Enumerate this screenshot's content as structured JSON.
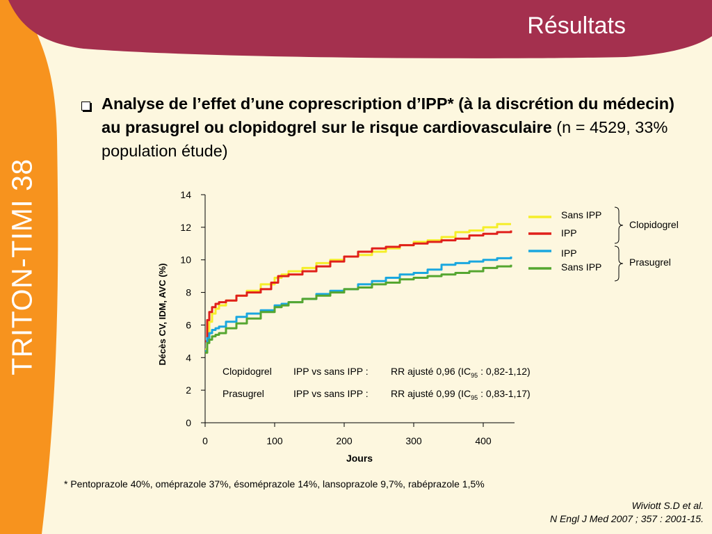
{
  "sidebar": {
    "title": "TRITON-TIMI 38"
  },
  "header": {
    "title": "Résultats"
  },
  "bullet": {
    "bold_text": "Analyse de l’effet d’une coprescription d’IPP* (à la discrétion du médecin) au prasugrel ou clopidogrel sur le risque cardiovasculaire",
    "normal_text": " (n = 4529, 33% population étude)"
  },
  "footnote": "* Pentoprazole 40%, oméprazole 37%, ésoméprazole 14%, lansoprazole 9,7%, rabéprazole 1,5%",
  "reference": {
    "line1": "Wiviott S.D et al.",
    "line2": "N Engl J Med 2007 ; 357 : 2001-15."
  },
  "colors": {
    "background": "#fdf7df",
    "sidebar": "#f7931e",
    "header": "#a4304e",
    "text": "#000000"
  },
  "chart_data": {
    "type": "line",
    "xlabel": "Jours",
    "ylabel": "Décès CV, IDM, AVC (%)",
    "xlim": [
      0,
      445
    ],
    "ylim": [
      0,
      14
    ],
    "xticks": [
      0,
      100,
      200,
      300,
      400
    ],
    "yticks": [
      0,
      2,
      4,
      6,
      8,
      10,
      12,
      14
    ],
    "grid": false,
    "legend": {
      "groups": [
        {
          "label": "Clopidogrel",
          "items": [
            "Sans IPP",
            "IPP"
          ]
        },
        {
          "label": "Prasugrel",
          "items": [
            "IPP",
            "Sans IPP"
          ]
        }
      ]
    },
    "series": [
      {
        "name": "Sans IPP",
        "group": "Clopidogrel",
        "color": "#f5ee2a",
        "x": [
          0,
          3,
          6,
          10,
          15,
          20,
          30,
          45,
          60,
          80,
          100,
          110,
          120,
          140,
          160,
          180,
          200,
          220,
          240,
          260,
          280,
          300,
          320,
          340,
          360,
          380,
          400,
          420,
          440
        ],
        "y": [
          4.5,
          5.5,
          6.2,
          6.7,
          7.0,
          7.2,
          7.5,
          7.8,
          8.1,
          8.5,
          8.9,
          9.1,
          9.3,
          9.5,
          9.8,
          10.0,
          10.2,
          10.3,
          10.5,
          10.7,
          10.9,
          11.1,
          11.2,
          11.4,
          11.7,
          11.8,
          12.0,
          12.2,
          12.2
        ]
      },
      {
        "name": "IPP",
        "group": "Clopidogrel",
        "color": "#e0201b",
        "x": [
          0,
          3,
          6,
          10,
          15,
          20,
          30,
          45,
          60,
          80,
          95,
          105,
          120,
          140,
          160,
          180,
          200,
          220,
          240,
          260,
          280,
          300,
          320,
          340,
          360,
          380,
          400,
          420,
          440
        ],
        "y": [
          5.0,
          6.3,
          6.8,
          7.1,
          7.3,
          7.4,
          7.5,
          7.8,
          8.0,
          8.2,
          8.6,
          9.0,
          9.1,
          9.3,
          9.6,
          9.9,
          10.2,
          10.5,
          10.7,
          10.8,
          10.9,
          11.0,
          11.1,
          11.2,
          11.3,
          11.5,
          11.6,
          11.7,
          11.8
        ]
      },
      {
        "name": "IPP",
        "group": "Prasugrel",
        "color": "#1aa7df",
        "x": [
          0,
          3,
          6,
          10,
          15,
          20,
          30,
          45,
          60,
          80,
          100,
          110,
          120,
          140,
          160,
          180,
          200,
          220,
          240,
          260,
          280,
          300,
          320,
          340,
          360,
          380,
          400,
          420,
          440
        ],
        "y": [
          4.4,
          5.2,
          5.5,
          5.7,
          5.8,
          5.9,
          6.2,
          6.5,
          6.7,
          6.9,
          7.2,
          7.3,
          7.4,
          7.6,
          7.9,
          8.1,
          8.2,
          8.5,
          8.7,
          8.9,
          9.1,
          9.2,
          9.4,
          9.7,
          9.8,
          9.9,
          10.0,
          10.1,
          10.2
        ]
      },
      {
        "name": "Sans IPP",
        "group": "Prasugrel",
        "color": "#55a630",
        "x": [
          0,
          3,
          6,
          10,
          15,
          20,
          30,
          45,
          60,
          80,
          100,
          110,
          120,
          140,
          160,
          180,
          200,
          220,
          240,
          260,
          280,
          300,
          320,
          340,
          360,
          380,
          400,
          420,
          440
        ],
        "y": [
          4.3,
          4.9,
          5.1,
          5.3,
          5.4,
          5.5,
          5.8,
          6.1,
          6.4,
          6.8,
          7.1,
          7.2,
          7.4,
          7.6,
          7.8,
          8.0,
          8.2,
          8.3,
          8.5,
          8.6,
          8.8,
          8.9,
          9.0,
          9.1,
          9.2,
          9.3,
          9.5,
          9.6,
          9.7
        ]
      }
    ],
    "annotations": [
      {
        "group": "Clopidogrel",
        "comparison": "IPP vs sans IPP :",
        "result_prefix": "RR ajusté 0,96 (IC",
        "subscript": "95",
        "result_suffix": " : 0,82-1,12)"
      },
      {
        "group": "Prasugrel",
        "comparison": "IPP vs sans IPP :",
        "result_prefix": "RR ajusté 0,99 (IC",
        "subscript": "95",
        "result_suffix": " : 0,83-1,17)"
      }
    ]
  }
}
